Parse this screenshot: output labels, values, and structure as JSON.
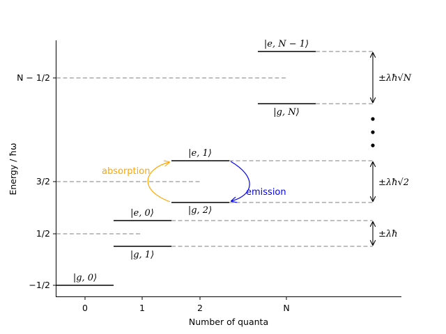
{
  "chart_data": {
    "type": "energy-level-diagram",
    "xlabel": "Number of quanta",
    "ylabel": "Energy / ħω",
    "x_ticks": [
      "0",
      "1",
      "2",
      "N"
    ],
    "y_ticks": [
      "−1/2",
      "1/2",
      "3/2",
      "N − 1/2"
    ],
    "levels": [
      {
        "label": "|g, 0⟩",
        "quanta": "0"
      },
      {
        "label": "|g, 1⟩",
        "quanta": "1"
      },
      {
        "label": "|e, 0⟩",
        "quanta": "1"
      },
      {
        "label": "|g, 2⟩",
        "quanta": "2"
      },
      {
        "label": "|e, 1⟩",
        "quanta": "2"
      },
      {
        "label": "|g, N⟩",
        "quanta": "N"
      },
      {
        "label": "|e, N − 1⟩",
        "quanta": "N"
      }
    ],
    "splittings": [
      {
        "label": "±λħ"
      },
      {
        "label": "±λħ√2"
      },
      {
        "label": "±λħ√N"
      }
    ],
    "transitions": [
      {
        "label": "absorption",
        "from": "|g, 2⟩",
        "to": "|e, 1⟩",
        "color": "#ffa500"
      },
      {
        "label": "emission",
        "from": "|e, 1⟩",
        "to": "|g, 2⟩",
        "color": "#0000ff"
      }
    ],
    "ellipsis_dots": 3,
    "colors": {
      "level": "#000000",
      "guide": "#aaaaaa",
      "axis": "#000000"
    }
  }
}
